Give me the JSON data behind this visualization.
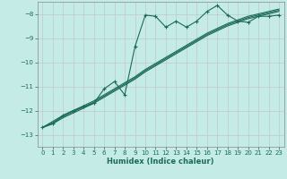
{
  "xlabel": "Humidex (Indice chaleur)",
  "bg_color": "#c5ebe6",
  "grid_color": "#c0c8c8",
  "line_color": "#1a6b5a",
  "xlim": [
    -0.5,
    23.5
  ],
  "ylim": [
    -13.5,
    -7.5
  ],
  "yticks": [
    -13,
    -12,
    -11,
    -10,
    -9,
    -8
  ],
  "xticks": [
    0,
    1,
    2,
    3,
    4,
    5,
    6,
    7,
    8,
    9,
    10,
    11,
    12,
    13,
    14,
    15,
    16,
    17,
    18,
    19,
    20,
    21,
    22,
    23
  ],
  "x_data": [
    0,
    1,
    2,
    3,
    4,
    5,
    6,
    7,
    8,
    9,
    10,
    11,
    12,
    13,
    14,
    15,
    16,
    17,
    18,
    19,
    20,
    21,
    22,
    23
  ],
  "y_main": [
    -12.7,
    -12.55,
    -12.2,
    -12.0,
    -11.85,
    -11.7,
    -11.1,
    -10.8,
    -11.35,
    -9.35,
    -8.05,
    -8.1,
    -8.55,
    -8.3,
    -8.55,
    -8.3,
    -7.9,
    -7.65,
    -8.05,
    -8.3,
    -8.35,
    -8.1,
    -8.1,
    -8.05
  ],
  "y_line1": [
    -12.7,
    -12.45,
    -12.2,
    -12.0,
    -11.8,
    -11.6,
    -11.35,
    -11.1,
    -10.85,
    -10.6,
    -10.3,
    -10.05,
    -9.8,
    -9.55,
    -9.3,
    -9.05,
    -8.8,
    -8.6,
    -8.4,
    -8.25,
    -8.1,
    -8.0,
    -7.9,
    -7.8
  ],
  "y_line2": [
    -12.7,
    -12.5,
    -12.25,
    -12.05,
    -11.85,
    -11.65,
    -11.4,
    -11.15,
    -10.9,
    -10.65,
    -10.35,
    -10.1,
    -9.85,
    -9.6,
    -9.35,
    -9.1,
    -8.85,
    -8.65,
    -8.45,
    -8.3,
    -8.15,
    -8.05,
    -7.95,
    -7.85
  ],
  "y_line3": [
    -12.7,
    -12.55,
    -12.3,
    -12.1,
    -11.9,
    -11.7,
    -11.45,
    -11.2,
    -10.95,
    -10.7,
    -10.4,
    -10.15,
    -9.9,
    -9.65,
    -9.4,
    -9.15,
    -8.9,
    -8.7,
    -8.5,
    -8.35,
    -8.2,
    -8.1,
    -8.0,
    -7.9
  ]
}
